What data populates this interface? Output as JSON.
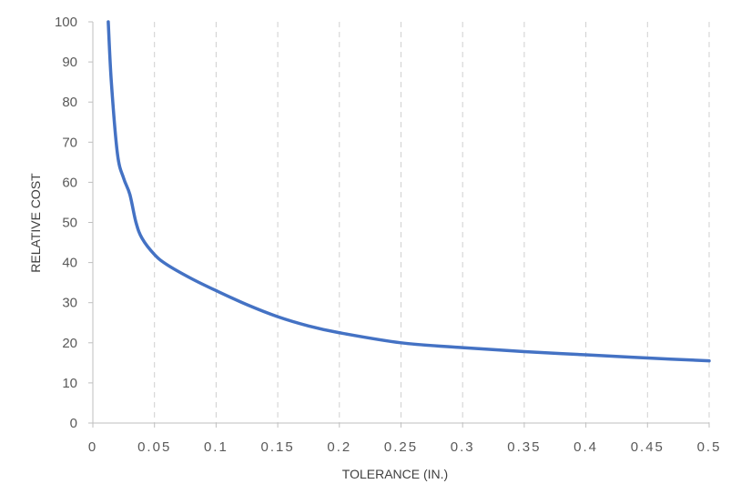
{
  "chart_data": {
    "type": "line",
    "title": "",
    "xlabel": "TOLERANCE (IN.)",
    "ylabel": "RELATIVE COST",
    "xlim": [
      0,
      0.5
    ],
    "ylim": [
      0,
      100
    ],
    "x_ticks": [
      0,
      0.05,
      0.1,
      0.15,
      0.2,
      0.25,
      0.3,
      0.35,
      0.4,
      0.45,
      0.5
    ],
    "x_tick_labels": [
      "0",
      "0.05",
      "0.1",
      "0.15",
      "0.2",
      "0.25",
      "0.3",
      "0.35",
      "0.4",
      "0.45",
      "0.5"
    ],
    "y_ticks": [
      0,
      10,
      20,
      30,
      40,
      50,
      60,
      70,
      80,
      90,
      100
    ],
    "y_tick_labels": [
      "0",
      "10",
      "20",
      "30",
      "40",
      "50",
      "60",
      "70",
      "80",
      "90",
      "100"
    ],
    "grid": {
      "vertical": true,
      "style": "dashed",
      "horizontal": false
    },
    "legend": "none",
    "series": [
      {
        "color": "#4472C4",
        "x": [
          0.0125,
          0.015,
          0.02,
          0.025,
          0.03,
          0.035,
          0.04,
          0.05,
          0.06,
          0.08,
          0.1,
          0.125,
          0.15,
          0.175,
          0.2,
          0.25,
          0.3,
          0.35,
          0.4,
          0.45,
          0.5
        ],
        "y": [
          100,
          85,
          67,
          61,
          57,
          50,
          46,
          42,
          39.5,
          36,
          33,
          29.5,
          26.5,
          24.2,
          22.5,
          20,
          18.8,
          17.8,
          17,
          16.2,
          15.5
        ]
      }
    ]
  }
}
